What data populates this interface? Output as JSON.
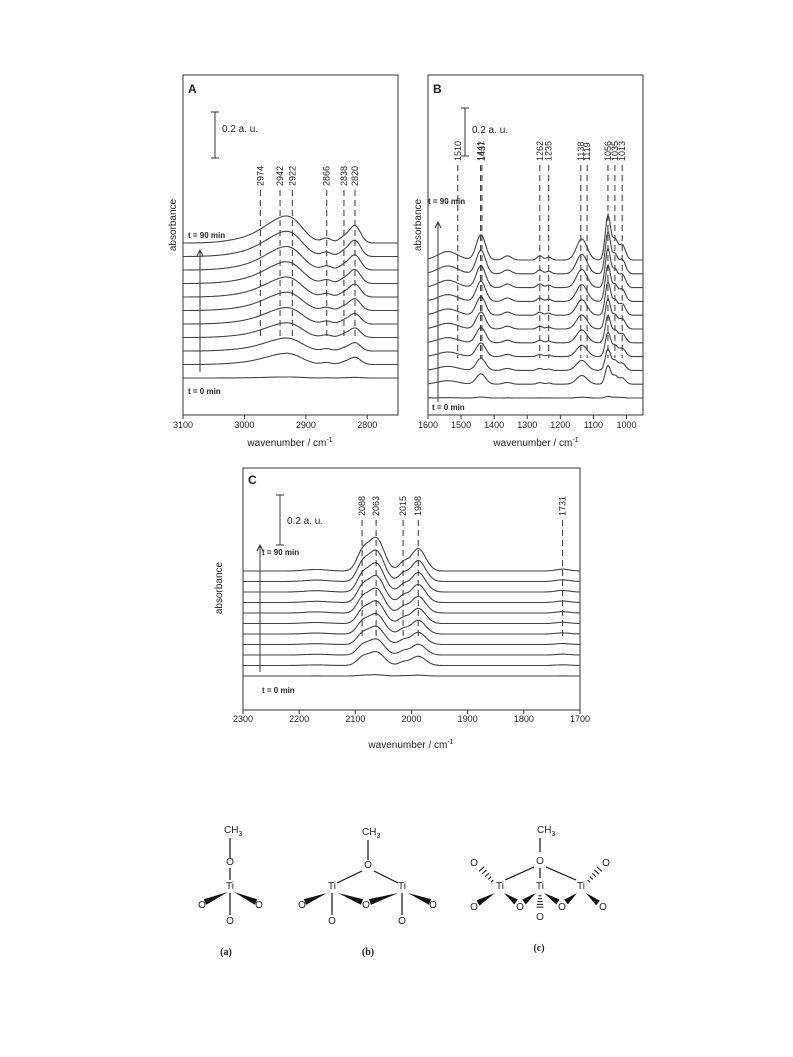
{
  "chart_data": [
    {
      "type": "line",
      "panel": "A",
      "xlabel": "wavenumber / cm",
      "xlabel_exp": "-1",
      "ylabel": "absorbance",
      "xlim": [
        3100,
        2750
      ],
      "xticks": [
        3100,
        3000,
        2900,
        2800
      ],
      "scale_bar": "0.2 a. u.",
      "time_top": "t = 90 min",
      "time_bottom": "t = 0 min",
      "annotations": [
        "2974",
        "2942",
        "2922",
        "2866",
        "2838",
        "2820"
      ],
      "annotation_x": [
        2974,
        2942,
        2922,
        2866,
        2838,
        2820
      ],
      "series_count": 11,
      "peaks": [
        [
          2975,
          0.35,
          38
        ],
        [
          2942,
          0.9,
          26
        ],
        [
          2920,
          0.6,
          18
        ],
        [
          2866,
          0.25,
          8
        ],
        [
          2838,
          0.3,
          8
        ],
        [
          2820,
          0.95,
          9
        ]
      ]
    },
    {
      "type": "line",
      "panel": "B",
      "xlabel": "wavenumber / cm",
      "xlabel_exp": "-1",
      "ylabel": "absorbance",
      "xlim": [
        1600,
        950
      ],
      "xticks": [
        1600,
        1500,
        1400,
        1300,
        1200,
        1100,
        1000
      ],
      "scale_bar": "0.2 a. u.",
      "time_top": "t = 90 min",
      "time_bottom": "t = 0 min",
      "annotations": [
        "1510",
        "1441",
        "1437",
        "1262",
        "1235",
        "1138",
        "1119",
        "1056",
        "1035",
        "1013"
      ],
      "annotation_x": [
        1510,
        1441,
        1437,
        1262,
        1235,
        1138,
        1119,
        1056,
        1035,
        1013
      ],
      "series_count": 11,
      "peaks": [
        [
          1540,
          0.3,
          30
        ],
        [
          1440,
          0.9,
          14
        ],
        [
          1360,
          0.15,
          12
        ],
        [
          1262,
          0.15,
          8
        ],
        [
          1235,
          0.1,
          8
        ],
        [
          1135,
          0.75,
          16
        ],
        [
          1056,
          1.6,
          8
        ],
        [
          1035,
          0.7,
          8
        ],
        [
          1013,
          0.55,
          10
        ]
      ]
    },
    {
      "type": "line",
      "panel": "C",
      "xlabel": "wavenumber / cm",
      "xlabel_exp": "-1",
      "ylabel": "absorbance",
      "xlim": [
        2300,
        1700
      ],
      "xticks": [
        2300,
        2200,
        2100,
        2000,
        1900,
        1800,
        1700
      ],
      "scale_bar": "0.2 a. u.",
      "time_top": "t = 90 min",
      "time_bottom": "t = 0 min",
      "annotations": [
        "2088",
        "2063",
        "2015",
        "1988",
        "1731"
      ],
      "annotation_x": [
        2088,
        2063,
        2015,
        1988,
        1731
      ],
      "series_count": 11,
      "peaks": [
        [
          2170,
          0.05,
          20
        ],
        [
          2088,
          0.55,
          10
        ],
        [
          2063,
          1.1,
          14
        ],
        [
          2015,
          0.25,
          8
        ],
        [
          1988,
          0.75,
          13
        ],
        [
          1731,
          0.06,
          12
        ]
      ]
    }
  ],
  "structures": {
    "labels": [
      "(a)",
      "(b)",
      "(c)"
    ],
    "ch3": "CH",
    "ch3_sub": "3",
    "o": "O",
    "ti": "Ti"
  }
}
